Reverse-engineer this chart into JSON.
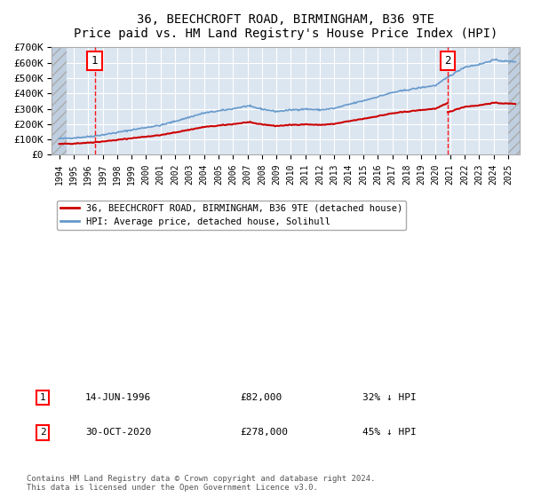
{
  "title": "36, BEECHCROFT ROAD, BIRMINGHAM, B36 9TE",
  "subtitle": "Price paid vs. HM Land Registry's House Price Index (HPI)",
  "ylim": [
    0,
    700000
  ],
  "yticks": [
    0,
    100000,
    200000,
    300000,
    400000,
    500000,
    600000,
    700000
  ],
  "ytick_labels": [
    "£0",
    "£100K",
    "£200K",
    "£300K",
    "£400K",
    "£500K",
    "£600K",
    "£700K"
  ],
  "xlim_start": 1993.5,
  "xlim_end": 2025.8,
  "background_color": "#ffffff",
  "plot_bg_color": "#dce6f1",
  "hatch_color": "#c0cfe0",
  "grid_color": "#ffffff",
  "purchase1_date": 1996.45,
  "purchase1_price": 82000,
  "purchase2_date": 2020.83,
  "purchase2_price": 278000,
  "red_line_color": "#cc0000",
  "blue_line_color": "#6699cc",
  "legend_label_red": "36, BEECHCROFT ROAD, BIRMINGHAM, B36 9TE (detached house)",
  "legend_label_blue": "HPI: Average price, detached house, Solihull",
  "annotation1_date": "14-JUN-1996",
  "annotation1_price": "£82,000",
  "annotation1_note": "32% ↓ HPI",
  "annotation2_date": "30-OCT-2020",
  "annotation2_price": "£278,000",
  "annotation2_note": "45% ↓ HPI",
  "footer": "Contains HM Land Registry data © Crown copyright and database right 2024.\nThis data is licensed under the Open Government Licence v3.0.",
  "xticks": [
    1994,
    1995,
    1996,
    1997,
    1998,
    1999,
    2000,
    2001,
    2002,
    2003,
    2004,
    2005,
    2006,
    2007,
    2008,
    2009,
    2010,
    2011,
    2012,
    2013,
    2014,
    2015,
    2016,
    2017,
    2018,
    2019,
    2020,
    2021,
    2022,
    2023,
    2024,
    2025
  ],
  "hatch_left_end": 1994.5,
  "hatch_right_start": 2025.0,
  "data_start": 1994.0,
  "data_end": 2025.5
}
